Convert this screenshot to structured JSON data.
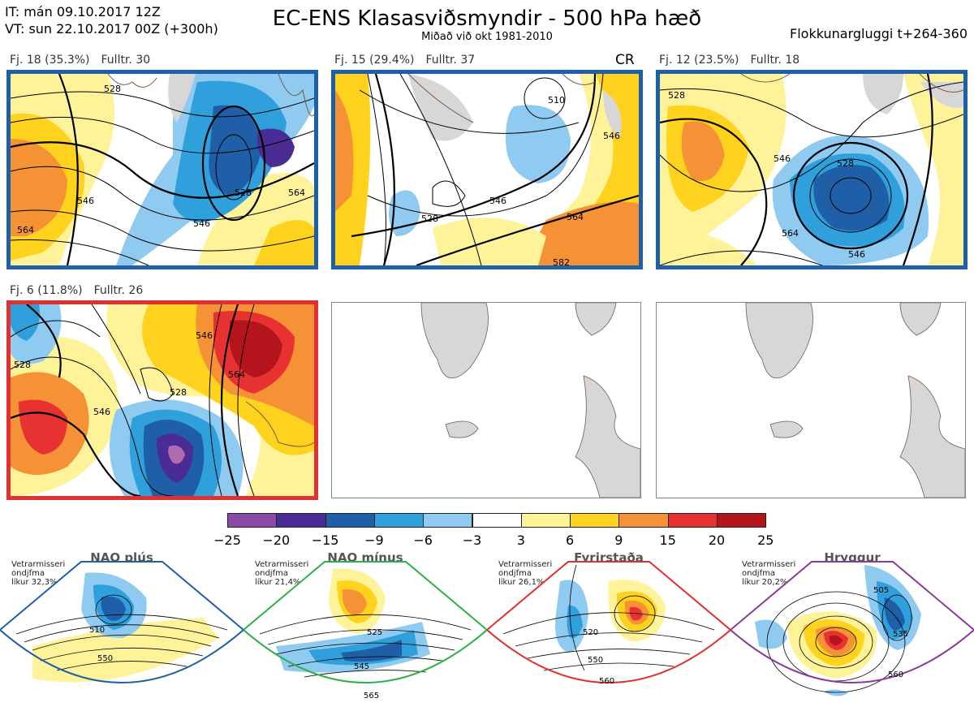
{
  "header": {
    "it_line": "IT: mán 09.10.2017 12Z",
    "vt_line": "VT: sun 22.10.2017 00Z  (+300h)",
    "title": "EC-ENS Klasasviðsmyndir - 500 hPa hæð",
    "subtitle": "Miðað við okt 1981-2010",
    "window": "Flokkunargluggi t+264-360"
  },
  "panels": [
    {
      "fj": "Fj. 18 (35.3%)",
      "fulltr": "Fulltr. 30",
      "frame_color": "#1f5fa8",
      "tag": "",
      "contours": [
        "528",
        "546",
        "564",
        "564",
        "546",
        "528"
      ]
    },
    {
      "fj": "Fj. 15 (29.4%)",
      "fulltr": "Fulltr. 37",
      "frame_color": "#1f5fa8",
      "tag": "CR",
      "contours": [
        "528",
        "546",
        "564",
        "582",
        "546",
        "510"
      ]
    },
    {
      "fj": "Fj. 12 (23.5%)",
      "fulltr": "Fulltr. 18",
      "frame_color": "#1f5fa8",
      "tag": "",
      "contours": [
        "528",
        "546",
        "564",
        "546",
        "528"
      ]
    },
    {
      "fj": "Fj. 6 (11.8%)",
      "fulltr": "Fulltr. 26",
      "frame_color": "#e03030",
      "tag": "",
      "contours": [
        "528",
        "546",
        "564",
        "546",
        "528"
      ]
    }
  ],
  "colorbar": {
    "colors": [
      "#8a4aa6",
      "#4b2c95",
      "#1f5fa8",
      "#2fa0dc",
      "#8fcaf0",
      "#ffffff",
      "#fff39a",
      "#ffd21e",
      "#f59235",
      "#e83232",
      "#b4141c"
    ],
    "ticks": [
      "−25",
      "−20",
      "−15",
      "−9",
      "−6",
      "−3",
      "3",
      "6",
      "9",
      "15",
      "20",
      "25"
    ]
  },
  "regimes": [
    {
      "name": "NAO plús",
      "meta1": "Vetrarmisseri",
      "meta2": "ondjfma",
      "meta3": "líkur 32,3%",
      "color": "#1f5fa8",
      "contours": [
        "510",
        "550"
      ]
    },
    {
      "name": "NAO mínus",
      "meta1": "Vetrarmisseri",
      "meta2": "ondjfma",
      "meta3": "líkur 21,4%",
      "color": "#2db04a",
      "contours": [
        "525",
        "545",
        "565"
      ]
    },
    {
      "name": "Fyrirstaða",
      "meta1": "Vetrarmisseri",
      "meta2": "ondjfma",
      "meta3": "líkur 26,1%",
      "color": "#e03030",
      "contours": [
        "520",
        "550",
        "560"
      ]
    },
    {
      "name": "Hryggur",
      "meta1": "Vetrarmisseri",
      "meta2": "ondjfma",
      "meta3": "líkur 20,2%",
      "color": "#8a3a9a",
      "contours": [
        "505",
        "535",
        "560"
      ]
    }
  ]
}
